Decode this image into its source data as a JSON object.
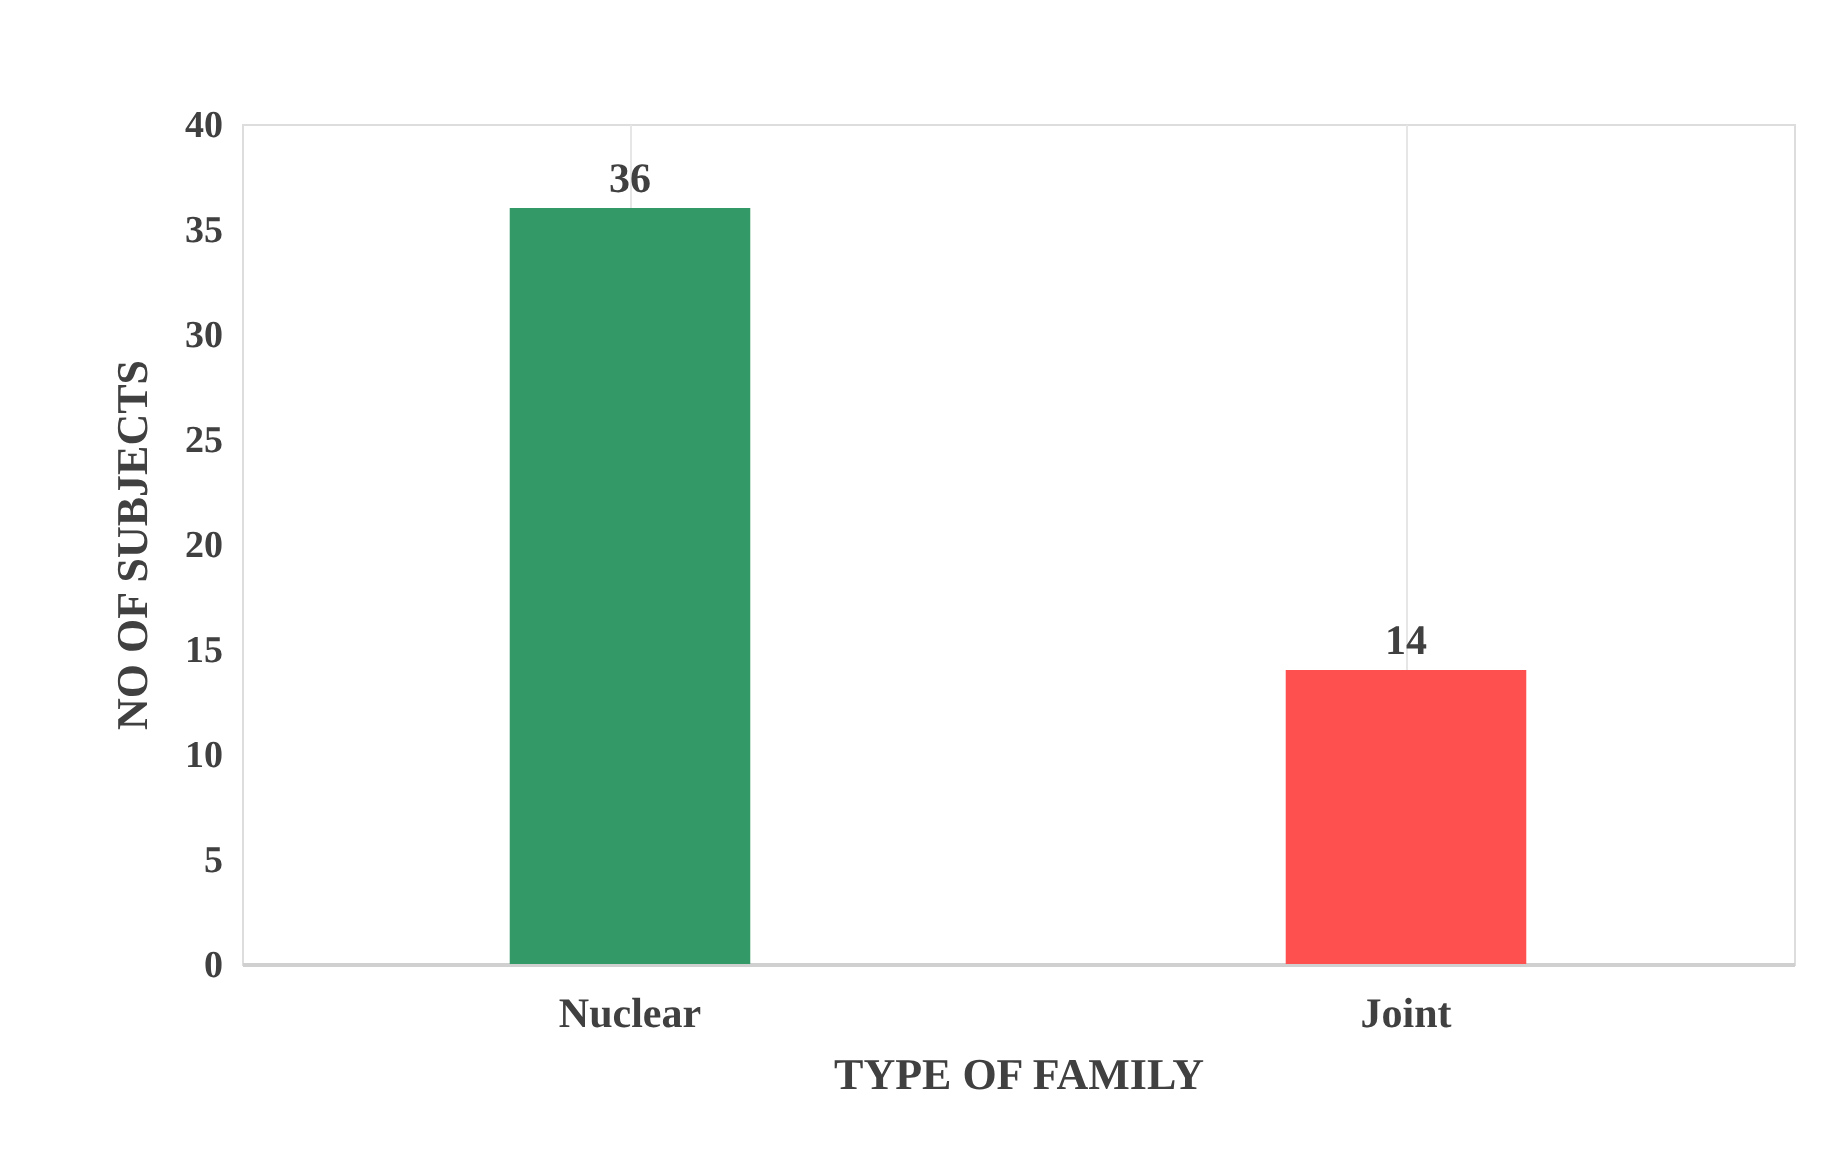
{
  "chart_data": {
    "type": "bar",
    "xlabel": "TYPE OF FAMILY",
    "ylabel": "NO OF SUBJECTS",
    "categories": [
      "Nuclear",
      "Joint"
    ],
    "values": [
      36,
      14
    ],
    "colors": [
      "#339966",
      "#ff5050"
    ],
    "ylim": [
      0,
      40
    ],
    "yticks": [
      0,
      5,
      10,
      15,
      20,
      25,
      30,
      35,
      40
    ],
    "grid": "x",
    "data_labels": true
  }
}
